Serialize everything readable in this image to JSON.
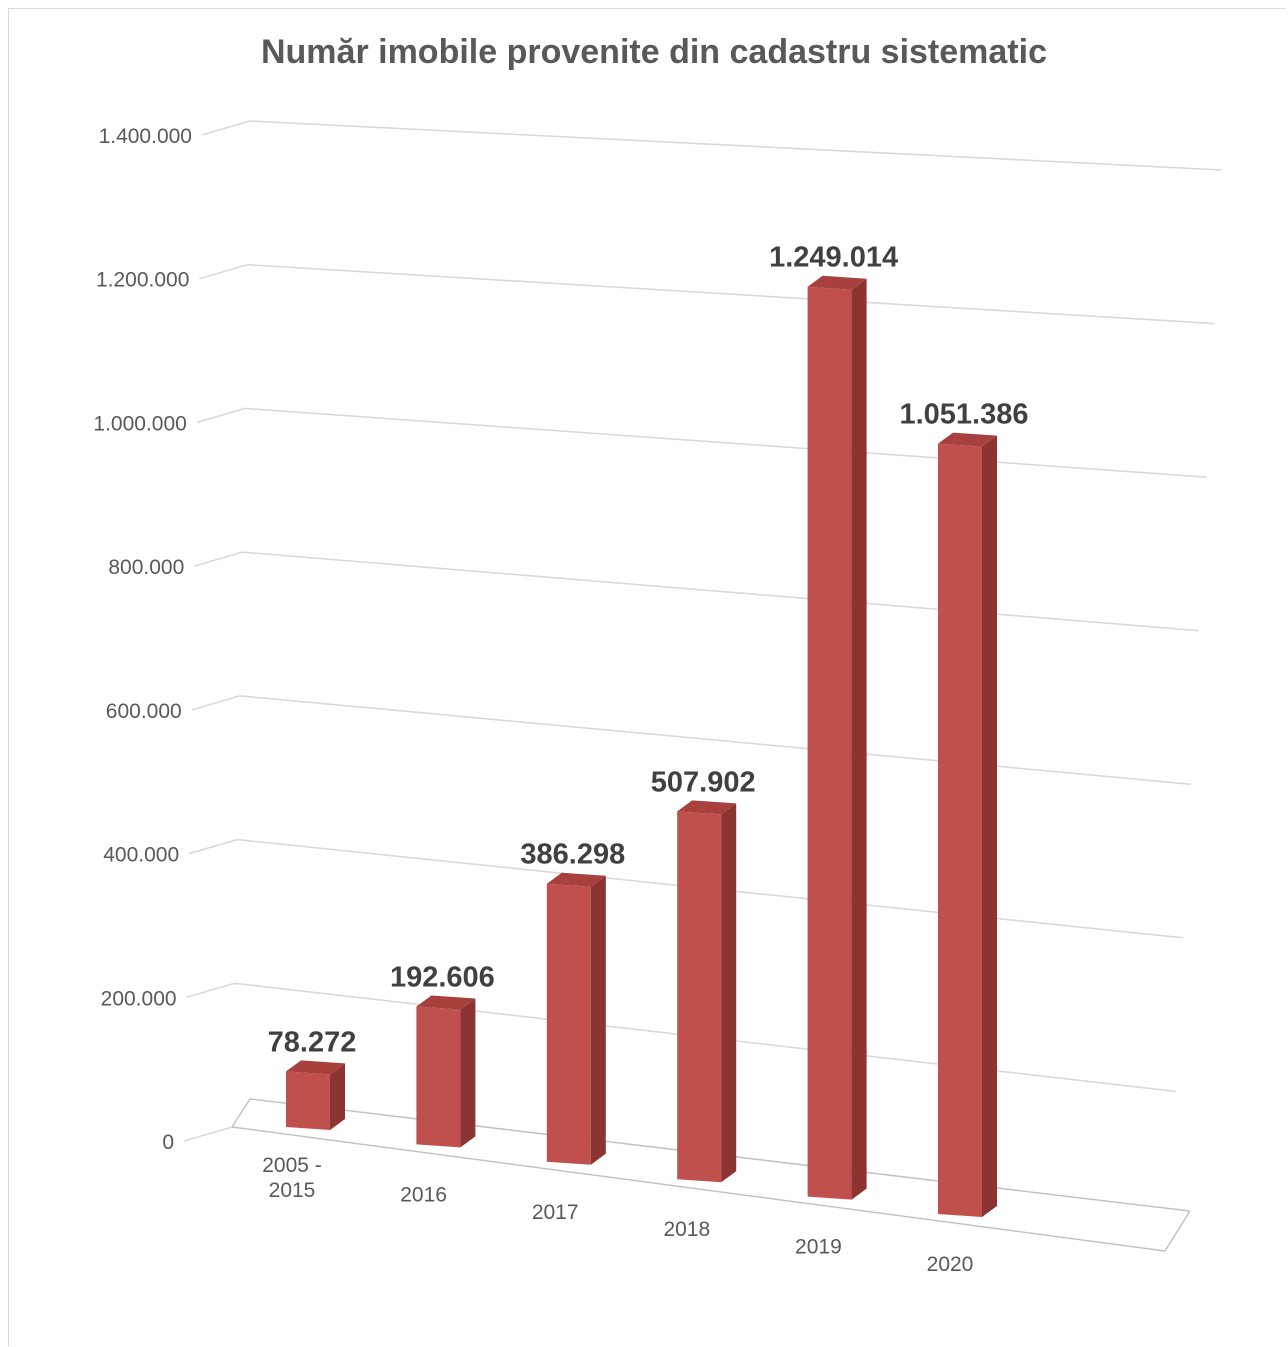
{
  "chart_data": {
    "type": "bar",
    "title": "Număr imobile provenite din cadastru sistematic",
    "categories": [
      [
        "2005 -",
        "2015"
      ],
      [
        "2016"
      ],
      [
        "2017"
      ],
      [
        "2018"
      ],
      [
        "2019"
      ],
      [
        "2020"
      ]
    ],
    "values": [
      78272,
      192606,
      386298,
      507902,
      1249014,
      1051386
    ],
    "data_labels": [
      "78.272",
      "192.606",
      "386.298",
      "507.902",
      "1.249.014",
      "1.051.386"
    ],
    "yticks": [
      0,
      200000,
      400000,
      600000,
      800000,
      1000000,
      1200000,
      1400000
    ],
    "ytick_labels": [
      "0",
      "200.000",
      "400.000",
      "600.000",
      "800.000",
      "1.000.000",
      "1.200.000",
      "1.400.000"
    ],
    "ylim": [
      0,
      1400000
    ],
    "grid": true,
    "bar_color": "#c0504d",
    "bar_side_color": "#8b3432",
    "bar_top_color": "#a8403d"
  }
}
